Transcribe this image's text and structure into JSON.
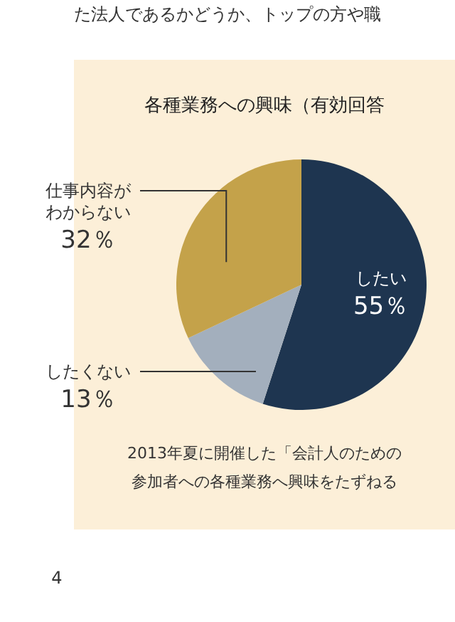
{
  "chart_data": {
    "type": "pie",
    "title": "各種業務への興味（有効回答",
    "categories": [
      "したい",
      "したくない",
      "仕事内容がわからない"
    ],
    "values": [
      55,
      13,
      32
    ],
    "colors": [
      "#1e3550",
      "#a3afbd",
      "#c4a24a"
    ],
    "value_labels": [
      "55％",
      "13％",
      "32％"
    ],
    "annotations": [
      "た法人であるかどうか、トップの方や職",
      "2013年夏に開催した「会計人のための",
      "参加者への各種業務へ興味をたずねる",
      "4"
    ]
  }
}
